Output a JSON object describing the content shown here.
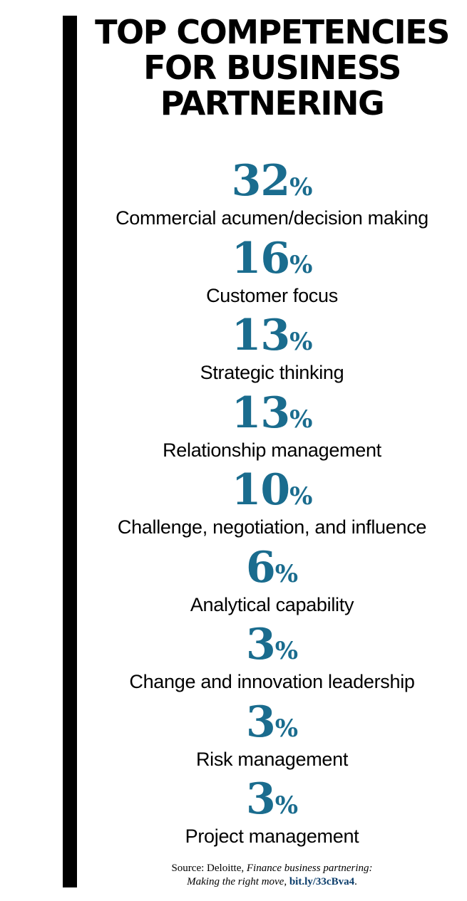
{
  "title_lines": [
    "TOP COMPETENCIES",
    "FOR BUSINESS",
    "PARTNERING"
  ],
  "colors": {
    "accent": "#1a6c8e",
    "text": "#000000",
    "bar": "#000000",
    "link": "#0b3d6b"
  },
  "chart_data": {
    "type": "table",
    "title": "TOP COMPETENCIES FOR BUSINESS PARTNERING",
    "unit": "%",
    "items": [
      {
        "value": 32,
        "label": "Commercial acumen/decision making"
      },
      {
        "value": 16,
        "label": "Customer focus"
      },
      {
        "value": 13,
        "label": "Strategic thinking"
      },
      {
        "value": 13,
        "label": "Relationship management"
      },
      {
        "value": 10,
        "label": "Challenge, negotiation, and influence"
      },
      {
        "value": 6,
        "label": "Analytical capability"
      },
      {
        "value": 3,
        "label": "Change and innovation leadership"
      },
      {
        "value": 3,
        "label": "Risk management"
      },
      {
        "value": 3,
        "label": "Project management"
      }
    ]
  },
  "source": {
    "prefix": "Source: Deloitte, ",
    "publication_line1": "Finance business partnering:",
    "publication_line2": "Making the right move",
    "separator": ", ",
    "link": "bit.ly/33cBva4",
    "suffix": "."
  }
}
